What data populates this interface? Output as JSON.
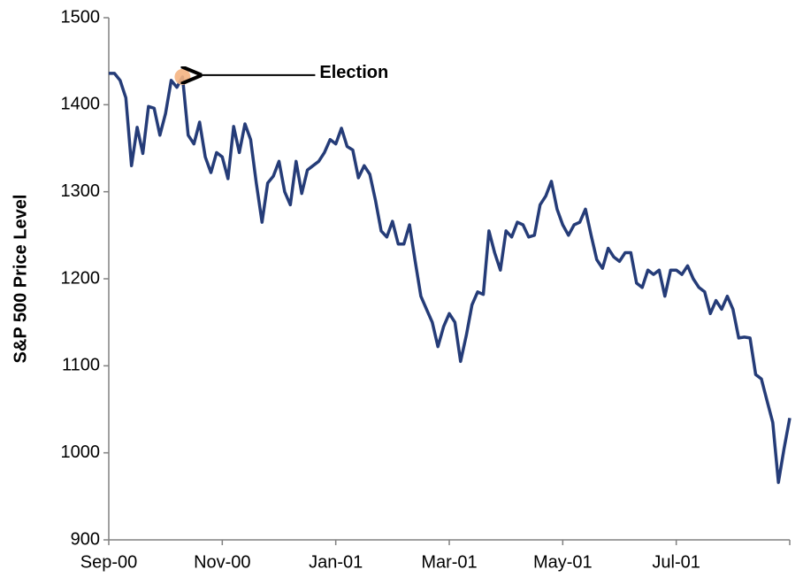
{
  "chart_data": {
    "type": "line",
    "ylabel": "S&P 500 Price Level",
    "categories": [
      "Sep-00",
      null,
      null,
      null,
      null,
      null,
      null,
      null,
      null,
      null,
      null,
      null,
      null,
      null,
      null,
      null,
      null,
      null,
      null,
      null,
      "Nov-00",
      null,
      null,
      null,
      null,
      null,
      null,
      null,
      null,
      null,
      null,
      null,
      null,
      null,
      null,
      null,
      null,
      null,
      null,
      null,
      "Jan-01",
      null,
      null,
      null,
      null,
      null,
      null,
      null,
      null,
      null,
      null,
      null,
      null,
      null,
      null,
      null,
      null,
      null,
      null,
      null,
      "Mar-01",
      null,
      null,
      null,
      null,
      null,
      null,
      null,
      null,
      null,
      null,
      null,
      null,
      null,
      null,
      null,
      null,
      null,
      null,
      null,
      "May-01",
      null,
      null,
      null,
      null,
      null,
      null,
      null,
      null,
      null,
      null,
      null,
      null,
      null,
      null,
      null,
      null,
      null,
      null,
      null,
      "Jul-01",
      null,
      null,
      null,
      null,
      null,
      null,
      null,
      null,
      null,
      null,
      null,
      null,
      null,
      null,
      null,
      null,
      null,
      null,
      null,
      null
    ],
    "series": [
      {
        "name": "S&P 500",
        "color": "#253c78",
        "values": [
          1436,
          1436,
          1428,
          1408,
          1330,
          1374,
          1344,
          1398,
          1396,
          1365,
          1390,
          1428,
          1420,
          1432,
          1365,
          1355,
          1380,
          1340,
          1322,
          1345,
          1340,
          1315,
          1375,
          1345,
          1378,
          1360,
          1310,
          1265,
          1310,
          1318,
          1335,
          1300,
          1285,
          1335,
          1298,
          1325,
          1330,
          1335,
          1345,
          1360,
          1355,
          1373,
          1352,
          1348,
          1316,
          1330,
          1320,
          1290,
          1255,
          1248,
          1266,
          1240,
          1240,
          1262,
          1220,
          1180,
          1165,
          1150,
          1122,
          1145,
          1160,
          1150,
          1105,
          1135,
          1170,
          1185,
          1182,
          1255,
          1230,
          1210,
          1255,
          1248,
          1265,
          1262,
          1248,
          1250,
          1285,
          1295,
          1312,
          1280,
          1262,
          1250,
          1262,
          1265,
          1280,
          1250,
          1222,
          1212,
          1235,
          1225,
          1220,
          1230,
          1230,
          1195,
          1190,
          1210,
          1205,
          1210,
          1180,
          1210,
          1210,
          1205,
          1215,
          1200,
          1190,
          1185,
          1160,
          1175,
          1165,
          1180,
          1165,
          1132,
          1133,
          1132,
          1090,
          1085,
          1060,
          1035,
          966,
          1005,
          1040
        ]
      }
    ],
    "ylim": [
      900,
      1500
    ],
    "yticks": [
      900,
      1000,
      1100,
      1200,
      1300,
      1400,
      1500
    ],
    "grid": false,
    "annotations": [
      {
        "text": "Election",
        "x": 13,
        "color": "#f5b482"
      }
    ]
  }
}
